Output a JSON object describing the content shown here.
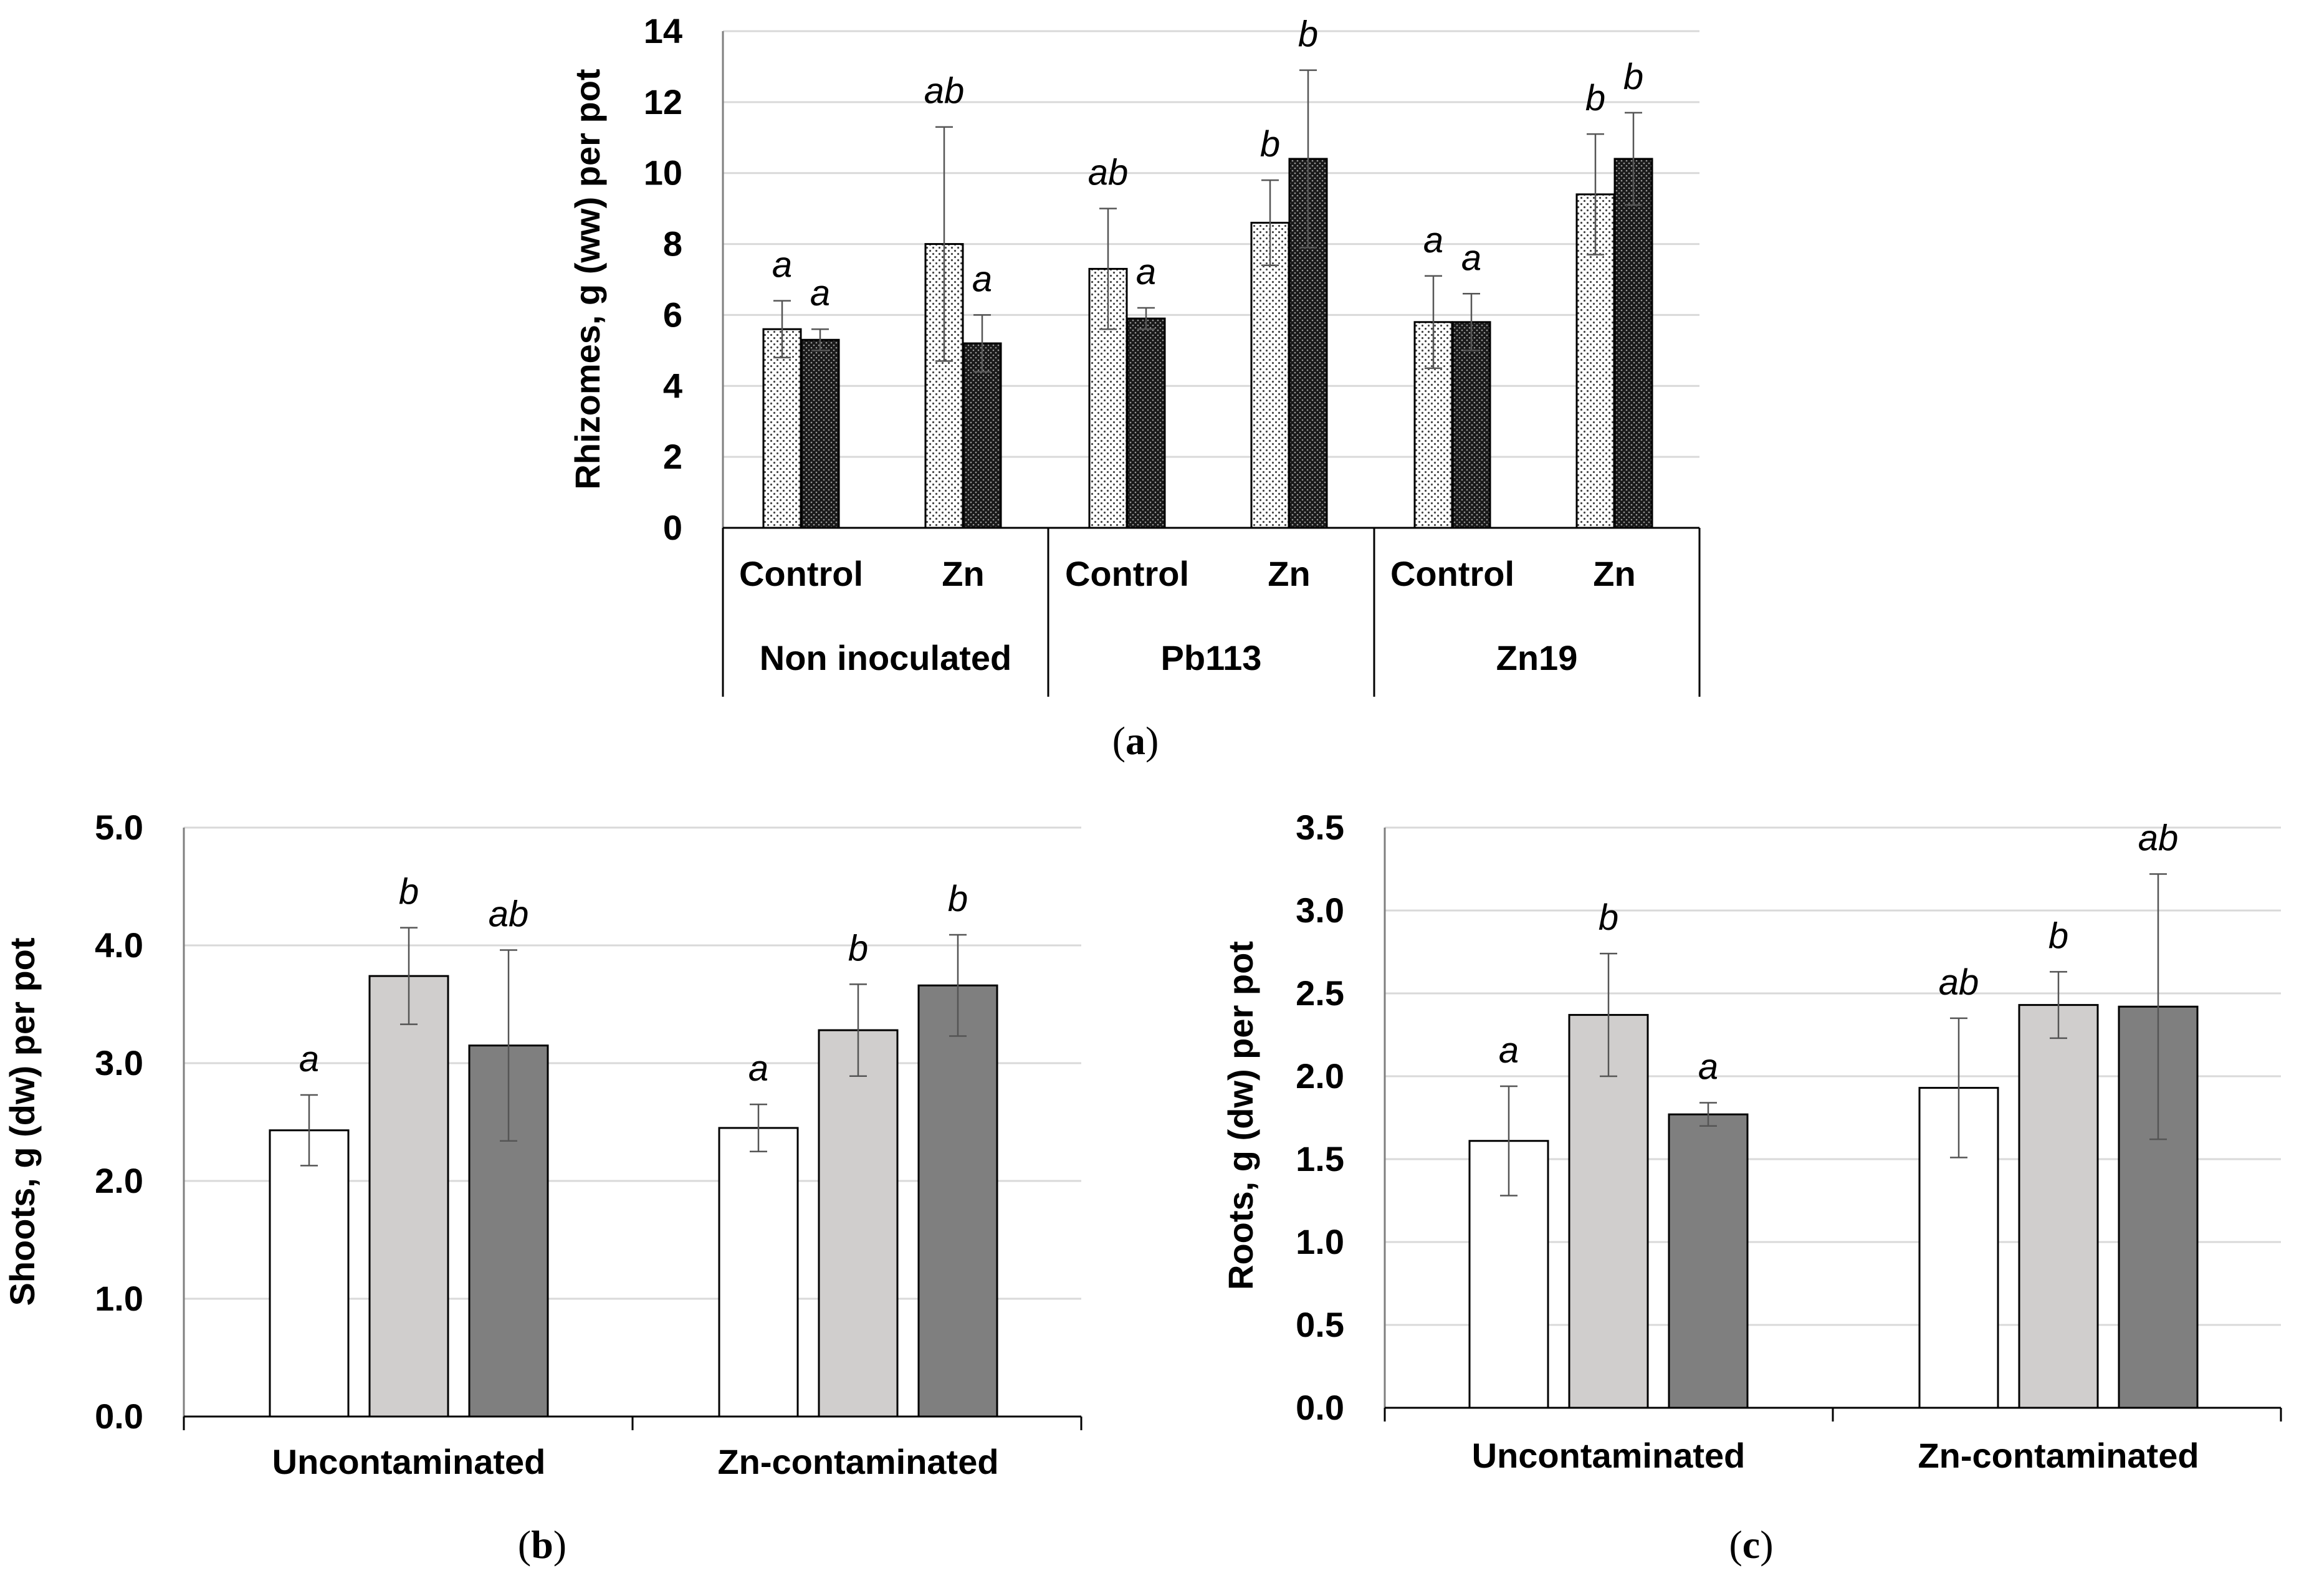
{
  "chart_data": [
    {
      "id": "a",
      "type": "bar",
      "caption_letter": "a",
      "ylabel": "Rhizomes, g (ww) per pot",
      "ylim": [
        0,
        14
      ],
      "yticks": [
        "0",
        "2",
        "4",
        "6",
        "8",
        "10",
        "12",
        "14"
      ],
      "ytick_values": [
        0,
        2,
        4,
        6,
        8,
        10,
        12,
        14
      ],
      "grid": true,
      "categories": [
        "Control",
        "Zn",
        "Control",
        "Zn",
        "Control",
        "Zn"
      ],
      "groups": [
        "Non inoculated",
        "Pb113",
        "Zn19"
      ],
      "series": [
        {
          "name": "series-1",
          "pattern": "light-dotted",
          "values": [
            5.6,
            8.0,
            7.3,
            8.6,
            5.8,
            9.4
          ],
          "errors": [
            0.8,
            3.3,
            1.7,
            1.2,
            1.3,
            1.7
          ],
          "labels": [
            "a",
            "ab",
            "ab",
            "b",
            "a",
            "b"
          ]
        },
        {
          "name": "series-2",
          "pattern": "dark-dotted",
          "values": [
            5.3,
            5.2,
            5.9,
            10.4,
            5.8,
            10.4
          ],
          "errors": [
            0.3,
            0.8,
            0.3,
            2.5,
            0.8,
            1.3
          ],
          "labels": [
            "a",
            "a",
            "a",
            "b",
            "a",
            "b"
          ]
        }
      ]
    },
    {
      "id": "b",
      "type": "bar",
      "caption_letter": "b",
      "ylabel": "Shoots, g (dw) per pot",
      "ylim": [
        0,
        5
      ],
      "yticks": [
        "0.0",
        "1.0",
        "2.0",
        "3.0",
        "4.0",
        "5.0"
      ],
      "ytick_values": [
        0,
        1,
        2,
        3,
        4,
        5
      ],
      "grid": true,
      "categories": [
        "Uncontaminated",
        "Zn-contaminated"
      ],
      "series": [
        {
          "name": "series-1",
          "color": "#ffffff",
          "values": [
            2.43,
            2.45
          ],
          "errors": [
            0.3,
            0.2
          ],
          "labels": [
            "a",
            "a"
          ]
        },
        {
          "name": "series-2",
          "color": "#d0cecd",
          "values": [
            3.74,
            3.28
          ],
          "errors": [
            0.41,
            0.39
          ],
          "labels": [
            "b",
            "b"
          ]
        },
        {
          "name": "series-3",
          "color": "#7f7f7f",
          "values": [
            3.15,
            3.66
          ],
          "errors": [
            0.81,
            0.43
          ],
          "labels": [
            "ab",
            "b"
          ]
        }
      ]
    },
    {
      "id": "c",
      "type": "bar",
      "caption_letter": "c",
      "ylabel": "Roots, g (dw) per pot",
      "ylim": [
        0,
        3.5
      ],
      "yticks": [
        "0.0",
        "0.5",
        "1.0",
        "1.5",
        "2.0",
        "2.5",
        "3.0",
        "3.5"
      ],
      "ytick_values": [
        0,
        0.5,
        1,
        1.5,
        2,
        2.5,
        3,
        3.5
      ],
      "grid": true,
      "categories": [
        "Uncontaminated",
        "Zn-contaminated"
      ],
      "series": [
        {
          "name": "series-1",
          "color": "#ffffff",
          "values": [
            1.61,
            1.93
          ],
          "errors": [
            0.33,
            0.42
          ],
          "labels": [
            "a",
            "ab"
          ]
        },
        {
          "name": "series-2",
          "color": "#d0cecd",
          "values": [
            2.37,
            2.43
          ],
          "errors": [
            0.37,
            0.2
          ],
          "labels": [
            "b",
            "b"
          ]
        },
        {
          "name": "series-3",
          "color": "#7f7f7f",
          "values": [
            1.77,
            2.42
          ],
          "errors": [
            0.07,
            0.8
          ],
          "labels": [
            "a",
            "ab"
          ]
        }
      ]
    }
  ]
}
